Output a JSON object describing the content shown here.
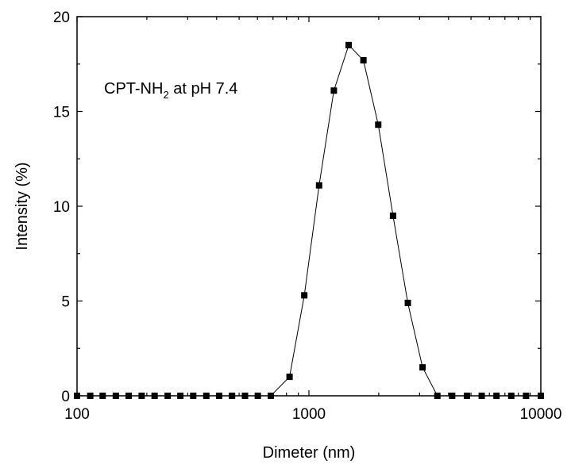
{
  "chart_data": {
    "type": "scatter",
    "title": "",
    "xlabel": "Dimeter (nm)",
    "ylabel": "Intensity (%)",
    "xscale": "log",
    "xlim": [
      100,
      10000
    ],
    "ylim": [
      0,
      20
    ],
    "grid": false,
    "legend": "none",
    "x_tick_labels": [
      "100",
      "1000",
      "10000"
    ],
    "y_tick_labels": [
      "0",
      "5",
      "10",
      "15",
      "20"
    ],
    "y_ticks": [
      0,
      5,
      10,
      15,
      20
    ],
    "x_ticks": [
      100,
      1000,
      10000
    ],
    "annotation": {
      "main": "CPT-NH",
      "subscript": "2",
      "suffix": " at pH 7.4"
    },
    "series": [
      {
        "marker": "square",
        "connected": true,
        "color": "#000000",
        "points": [
          {
            "x": 100,
            "y": 0
          },
          {
            "x": 114,
            "y": 0
          },
          {
            "x": 129,
            "y": 0
          },
          {
            "x": 147,
            "y": 0
          },
          {
            "x": 167,
            "y": 0
          },
          {
            "x": 190,
            "y": 0
          },
          {
            "x": 216,
            "y": 0
          },
          {
            "x": 246,
            "y": 0
          },
          {
            "x": 279,
            "y": 0
          },
          {
            "x": 317,
            "y": 0
          },
          {
            "x": 361,
            "y": 0
          },
          {
            "x": 410,
            "y": 0
          },
          {
            "x": 466,
            "y": 0
          },
          {
            "x": 530,
            "y": 0
          },
          {
            "x": 602,
            "y": 0
          },
          {
            "x": 685,
            "y": 0
          },
          {
            "x": 825,
            "y": 1.0
          },
          {
            "x": 955,
            "y": 5.3
          },
          {
            "x": 1106,
            "y": 11.1
          },
          {
            "x": 1281,
            "y": 16.1
          },
          {
            "x": 1484,
            "y": 18.5
          },
          {
            "x": 1718,
            "y": 17.7
          },
          {
            "x": 1990,
            "y": 14.3
          },
          {
            "x": 2305,
            "y": 9.5
          },
          {
            "x": 2670,
            "y": 4.9
          },
          {
            "x": 3091,
            "y": 1.5
          },
          {
            "x": 3580,
            "y": 0
          },
          {
            "x": 4146,
            "y": 0
          },
          {
            "x": 4802,
            "y": 0
          },
          {
            "x": 5560,
            "y": 0
          },
          {
            "x": 6440,
            "y": 0
          },
          {
            "x": 7456,
            "y": 0
          },
          {
            "x": 8635,
            "y": 0
          },
          {
            "x": 10000,
            "y": 0
          }
        ]
      }
    ]
  }
}
